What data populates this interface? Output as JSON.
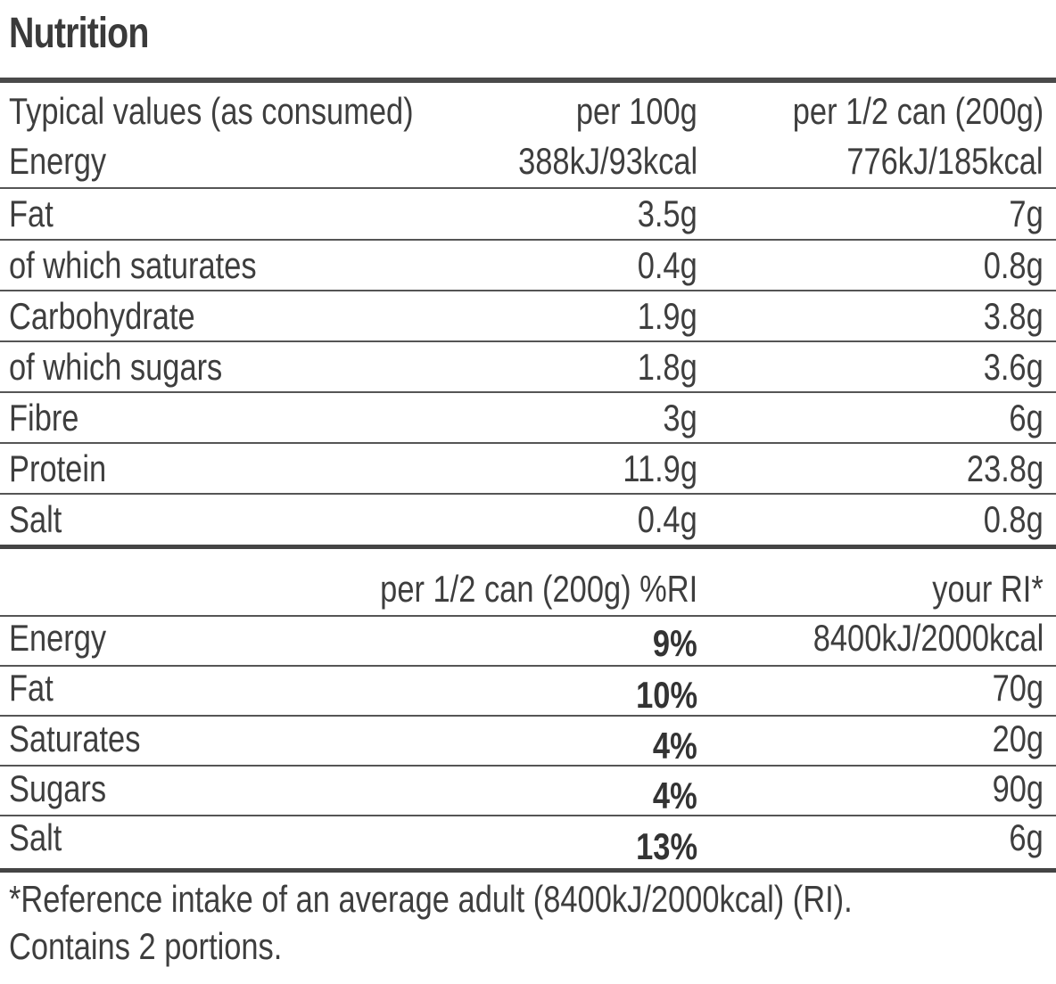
{
  "title": "Nutrition",
  "table1": {
    "header": {
      "label": "Typical values (as consumed)",
      "col1": "per 100g",
      "col2": "per 1/2 can (200g)"
    },
    "rows": [
      {
        "label": "Energy",
        "per100": "388kJ/93kcal",
        "perServing": "776kJ/185kcal"
      },
      {
        "label": "Fat",
        "per100": "3.5g",
        "perServing": "7g"
      },
      {
        "label": "of which saturates",
        "per100": "0.4g",
        "perServing": "0.8g"
      },
      {
        "label": "Carbohydrate",
        "per100": "1.9g",
        "perServing": "3.8g"
      },
      {
        "label": "of which sugars",
        "per100": "1.8g",
        "perServing": "3.6g"
      },
      {
        "label": "Fibre",
        "per100": "3g",
        "perServing": "6g"
      },
      {
        "label": "Protein",
        "per100": "11.9g",
        "perServing": "23.8g"
      },
      {
        "label": "Salt",
        "per100": "0.4g",
        "perServing": "0.8g"
      }
    ]
  },
  "table2": {
    "header": {
      "col1": "per 1/2 can (200g) %RI",
      "col2": "your RI*"
    },
    "rows": [
      {
        "label": "Energy",
        "ri": "9%",
        "yourRi": "8400kJ/2000kcal"
      },
      {
        "label": "Fat",
        "ri": "10%",
        "yourRi": "70g"
      },
      {
        "label": "Saturates",
        "ri": "4%",
        "yourRi": "20g"
      },
      {
        "label": "Sugars",
        "ri": "4%",
        "yourRi": "90g"
      },
      {
        "label": "Salt",
        "ri": "13%",
        "yourRi": "6g"
      }
    ]
  },
  "footnote": {
    "line1": "*Reference intake of an average adult (8400kJ/2000kcal) (RI).",
    "line2": "Contains 2 portions."
  }
}
